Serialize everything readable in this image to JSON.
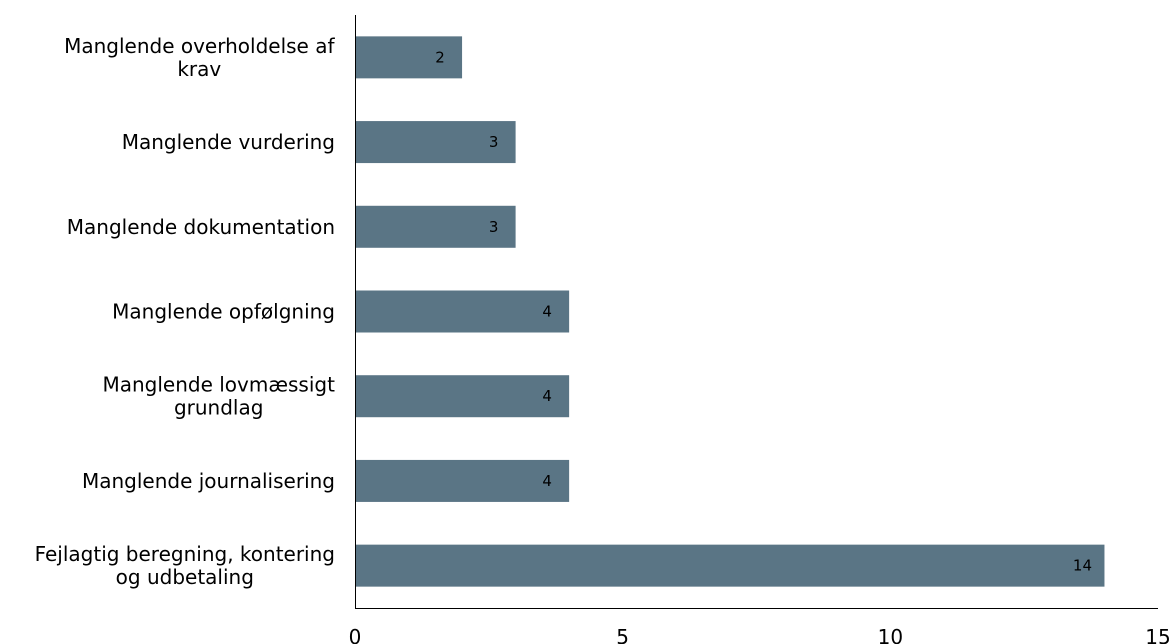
{
  "chart_data": {
    "type": "bar",
    "orientation": "horizontal",
    "categories": [
      "Manglende overholdelse af krav",
      "Manglende vurdering",
      "Manglende dokumentation",
      "Manglende opfølgning",
      "Manglende lovmæssigt grundlag",
      "Manglende journalisering",
      "Fejlagtig beregning, kontering og udbetaling"
    ],
    "category_lines": [
      [
        "Manglende overholdelse af",
        "krav"
      ],
      [
        "Manglende vurdering"
      ],
      [
        "Manglende dokumentation"
      ],
      [
        "Manglende opfølgning"
      ],
      [
        "Manglende lovmæssigt",
        "grundlag"
      ],
      [
        "Manglende journalisering"
      ],
      [
        "Fejlagtig beregning, kontering",
        "og udbetaling"
      ]
    ],
    "values": [
      2,
      3,
      3,
      4,
      4,
      4,
      14
    ],
    "data_labels": [
      "2",
      "3",
      "3",
      "4",
      "4",
      "4",
      "14"
    ],
    "title": "",
    "xlabel": "",
    "ylabel": "",
    "xlim": [
      0,
      15
    ],
    "xticks": [
      0,
      5,
      10,
      15
    ],
    "xtick_labels": [
      "0",
      "5",
      "10",
      "15"
    ],
    "grid": false,
    "legend": "none",
    "bar_color": "#5a7585"
  }
}
